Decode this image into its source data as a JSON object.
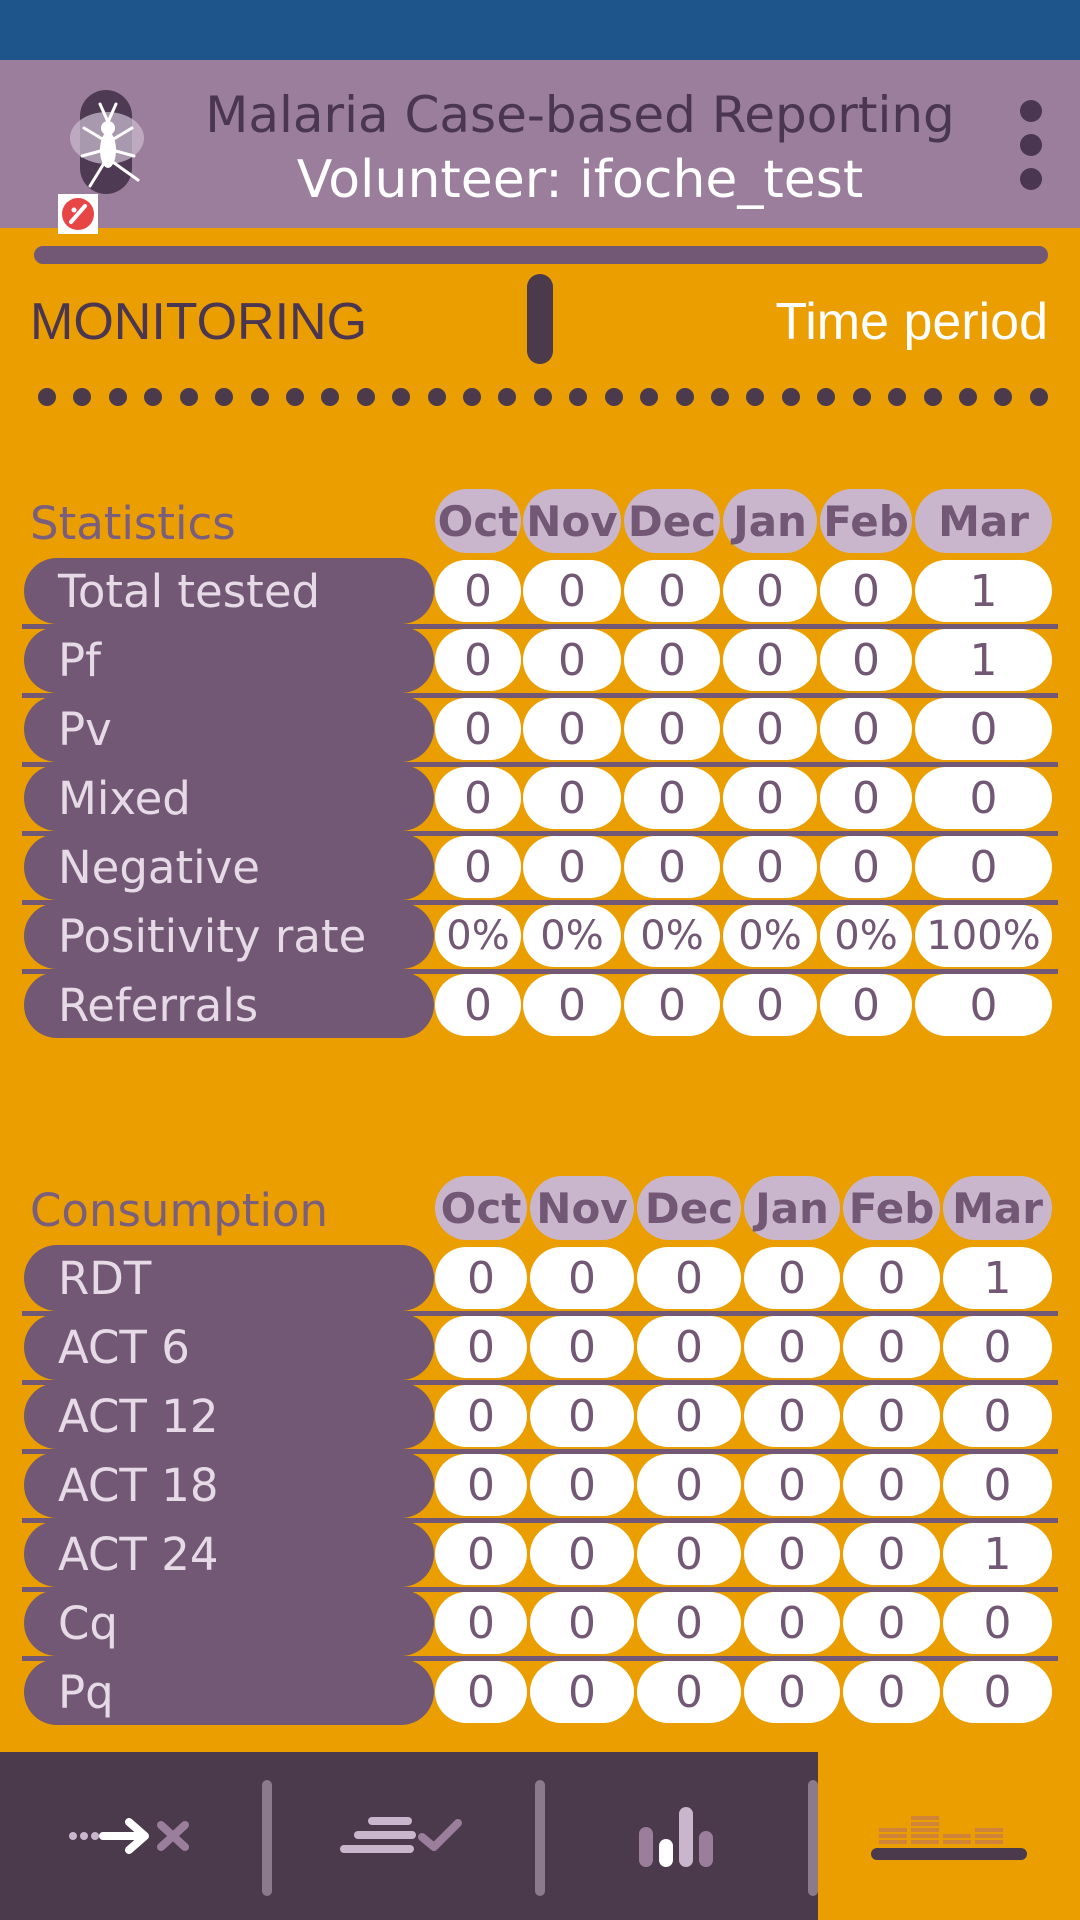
{
  "header": {
    "title": "Malaria Case-based Reporting",
    "subtitle": "Volunteer: ifoche_test"
  },
  "mode": {
    "left_label": "MONITORING",
    "right_label": "Time period"
  },
  "statistics": {
    "title": "Statistics",
    "months": [
      "Oct",
      "Nov",
      "Dec",
      "Jan",
      "Feb",
      "Mar"
    ],
    "rows": [
      {
        "label": "Total tested",
        "values": [
          "0",
          "0",
          "0",
          "0",
          "0",
          "1"
        ]
      },
      {
        "label": "Pf",
        "values": [
          "0",
          "0",
          "0",
          "0",
          "0",
          "1"
        ]
      },
      {
        "label": "Pv",
        "values": [
          "0",
          "0",
          "0",
          "0",
          "0",
          "0"
        ]
      },
      {
        "label": "Mixed",
        "values": [
          "0",
          "0",
          "0",
          "0",
          "0",
          "0"
        ]
      },
      {
        "label": "Negative",
        "values": [
          "0",
          "0",
          "0",
          "0",
          "0",
          "0"
        ]
      },
      {
        "label": "Positivity rate",
        "values": [
          "0%",
          "0%",
          "0%",
          "0%",
          "0%",
          "100%"
        ]
      },
      {
        "label": "Referrals",
        "values": [
          "0",
          "0",
          "0",
          "0",
          "0",
          "0"
        ]
      }
    ]
  },
  "consumption": {
    "title": "Consumption",
    "months": [
      "Oct",
      "Nov",
      "Dec",
      "Jan",
      "Feb",
      "Mar"
    ],
    "rows": [
      {
        "label": "RDT",
        "values": [
          "0",
          "0",
          "0",
          "0",
          "0",
          "1"
        ]
      },
      {
        "label": "ACT 6",
        "values": [
          "0",
          "0",
          "0",
          "0",
          "0",
          "0"
        ]
      },
      {
        "label": "ACT 12",
        "values": [
          "0",
          "0",
          "0",
          "0",
          "0",
          "0"
        ]
      },
      {
        "label": "ACT 18",
        "values": [
          "0",
          "0",
          "0",
          "0",
          "0",
          "0"
        ]
      },
      {
        "label": "ACT 24",
        "values": [
          "0",
          "0",
          "0",
          "0",
          "0",
          "1"
        ]
      },
      {
        "label": "Cq",
        "values": [
          "0",
          "0",
          "0",
          "0",
          "0",
          "0"
        ]
      },
      {
        "label": "Pq",
        "values": [
          "0",
          "0",
          "0",
          "0",
          "0",
          "0"
        ]
      }
    ]
  },
  "nav": {
    "items": [
      {
        "icon": "arrow-cross-icon"
      },
      {
        "icon": "list-check-icon"
      },
      {
        "icon": "bar-chart-icon"
      },
      {
        "icon": "stacked-bars-icon",
        "active": true
      }
    ]
  },
  "colors": {
    "background": "#EA9E00",
    "header": "#9A7E9B",
    "status_bar": "#1E568B",
    "row_label": "#725875",
    "month_pill": "#C9B6CC",
    "nav": "#4A3A4C"
  }
}
